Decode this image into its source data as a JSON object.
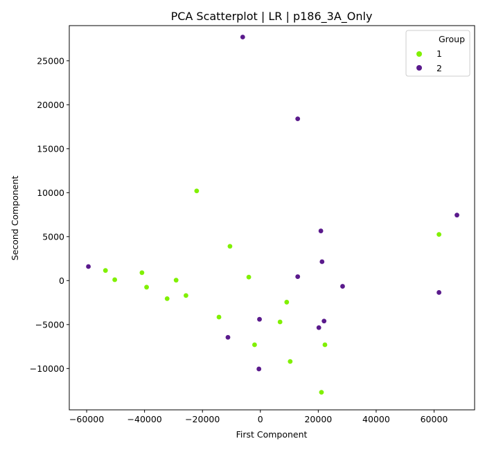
{
  "chart_data": {
    "type": "scatter",
    "title": "PCA Scatterplot | LR | p186_3A_Only",
    "xlabel": "First Component",
    "ylabel": "Second Component",
    "xlim": [
      -66000,
      74000
    ],
    "ylim": [
      -14700,
      29000
    ],
    "xticks": [
      -60000,
      -40000,
      -20000,
      0,
      20000,
      40000,
      60000
    ],
    "xtick_labels": [
      "−60000",
      "−40000",
      "−20000",
      "0",
      "20000",
      "40000",
      "60000"
    ],
    "yticks": [
      -10000,
      -5000,
      0,
      5000,
      10000,
      15000,
      20000,
      25000
    ],
    "ytick_labels": [
      "−10000",
      "−5000",
      "0",
      "5000",
      "10000",
      "15000",
      "20000",
      "25000"
    ],
    "grid": false,
    "legend": {
      "title": "Group",
      "placement": "top-right",
      "entries": [
        {
          "label": "1",
          "color": "#80f000"
        },
        {
          "label": "2",
          "color": "#5a1a8c"
        }
      ]
    },
    "series": [
      {
        "name": "1",
        "color": "#80f000",
        "points": [
          [
            -53500,
            1150
          ],
          [
            -50300,
            100
          ],
          [
            -40900,
            900
          ],
          [
            -39300,
            -750
          ],
          [
            -32200,
            -2050
          ],
          [
            -29100,
            50
          ],
          [
            -25700,
            -1700
          ],
          [
            -22000,
            10200
          ],
          [
            -14300,
            -4150
          ],
          [
            -10500,
            3900
          ],
          [
            -4000,
            400
          ],
          [
            -2000,
            -7300
          ],
          [
            6800,
            -4700
          ],
          [
            9100,
            -2450
          ],
          [
            10300,
            -9200
          ],
          [
            21100,
            -12700
          ],
          [
            22300,
            -7300
          ],
          [
            61700,
            5250
          ]
        ]
      },
      {
        "name": "2",
        "color": "#5a1a8c",
        "points": [
          [
            -59400,
            1600
          ],
          [
            -6100,
            27700
          ],
          [
            -11200,
            -6450
          ],
          [
            -300,
            -4400
          ],
          [
            -500,
            -10050
          ],
          [
            12900,
            18400
          ],
          [
            12900,
            450
          ],
          [
            20200,
            -5350
          ],
          [
            20900,
            5650
          ],
          [
            21300,
            2150
          ],
          [
            22000,
            -4600
          ],
          [
            28400,
            -650
          ],
          [
            61700,
            -1350
          ],
          [
            67900,
            7450
          ]
        ]
      }
    ]
  }
}
